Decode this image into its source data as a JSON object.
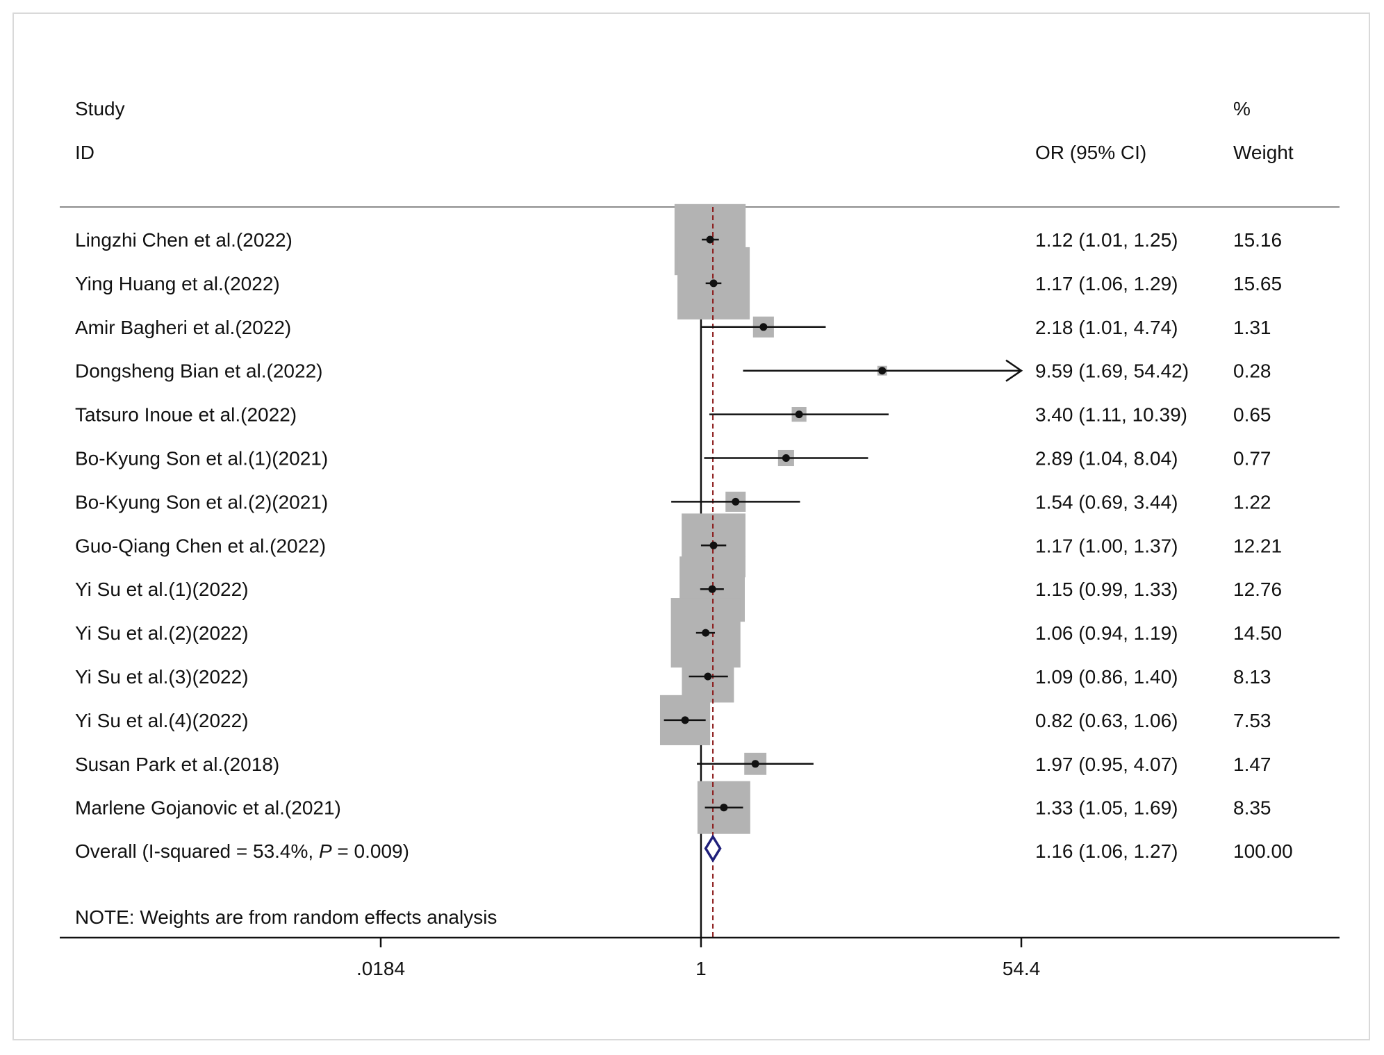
{
  "chart_data": {
    "type": "forest",
    "header": {
      "study_line1": "Study",
      "study_line2": "ID",
      "effect_label": "OR (95% CI)",
      "weight_line1": "%",
      "weight_line2": "Weight"
    },
    "studies": [
      {
        "label": "Lingzhi Chen et al.(2022)",
        "or": 1.12,
        "lo": 1.01,
        "hi": 1.25,
        "ci_text": "1.12 (1.01, 1.25)",
        "weight": 15.16,
        "weight_text": "15.16"
      },
      {
        "label": "Ying Huang et al.(2022)",
        "or": 1.17,
        "lo": 1.06,
        "hi": 1.29,
        "ci_text": "1.17 (1.06, 1.29)",
        "weight": 15.65,
        "weight_text": "15.65"
      },
      {
        "label": "Amir Bagheri et al.(2022)",
        "or": 2.18,
        "lo": 1.01,
        "hi": 4.74,
        "ci_text": "2.18 (1.01, 4.74)",
        "weight": 1.31,
        "weight_text": "1.31"
      },
      {
        "label": "Dongsheng Bian et al.(2022)",
        "or": 9.59,
        "lo": 1.69,
        "hi": 54.42,
        "ci_text": "9.59 (1.69, 54.42)",
        "weight": 0.28,
        "weight_text": "0.28"
      },
      {
        "label": "Tatsuro Inoue et al.(2022)",
        "or": 3.4,
        "lo": 1.11,
        "hi": 10.39,
        "ci_text": "3.40 (1.11, 10.39)",
        "weight": 0.65,
        "weight_text": "0.65"
      },
      {
        "label": "Bo-Kyung Son et al.(1)(2021)",
        "or": 2.89,
        "lo": 1.04,
        "hi": 8.04,
        "ci_text": "2.89 (1.04, 8.04)",
        "weight": 0.77,
        "weight_text": "0.77"
      },
      {
        "label": "Bo-Kyung Son et al.(2)(2021)",
        "or": 1.54,
        "lo": 0.69,
        "hi": 3.44,
        "ci_text": "1.54 (0.69, 3.44)",
        "weight": 1.22,
        "weight_text": "1.22"
      },
      {
        "label": "Guo-Qiang Chen et al.(2022)",
        "or": 1.17,
        "lo": 1.0,
        "hi": 1.37,
        "ci_text": "1.17 (1.00, 1.37)",
        "weight": 12.21,
        "weight_text": "12.21"
      },
      {
        "label": "Yi Su et al.(1)(2022)",
        "or": 1.15,
        "lo": 0.99,
        "hi": 1.33,
        "ci_text": "1.15 (0.99, 1.33)",
        "weight": 12.76,
        "weight_text": "12.76"
      },
      {
        "label": "Yi Su et al.(2)(2022)",
        "or": 1.06,
        "lo": 0.94,
        "hi": 1.19,
        "ci_text": "1.06 (0.94, 1.19)",
        "weight": 14.5,
        "weight_text": "14.50"
      },
      {
        "label": "Yi Su et al.(3)(2022)",
        "or": 1.09,
        "lo": 0.86,
        "hi": 1.4,
        "ci_text": "1.09 (0.86, 1.40)",
        "weight": 8.13,
        "weight_text": "8.13"
      },
      {
        "label": "Yi Su et al.(4)(2022)",
        "or": 0.82,
        "lo": 0.63,
        "hi": 1.06,
        "ci_text": "0.82 (0.63, 1.06)",
        "weight": 7.53,
        "weight_text": "7.53"
      },
      {
        "label": "Susan Park et al.(2018)",
        "or": 1.97,
        "lo": 0.95,
        "hi": 4.07,
        "ci_text": "1.97 (0.95, 4.07)",
        "weight": 1.47,
        "weight_text": "1.47"
      },
      {
        "label": "Marlene Gojanovic et al.(2021)",
        "or": 1.33,
        "lo": 1.05,
        "hi": 1.69,
        "ci_text": "1.33 (1.05, 1.69)",
        "weight": 8.35,
        "weight_text": "8.35"
      }
    ],
    "overall": {
      "label_prefix": "Overall  (I-squared = 53.4%, ",
      "label_p": "P",
      "label_suffix": " = 0.009)",
      "or": 1.16,
      "lo": 1.06,
      "hi": 1.27,
      "ci_text": "1.16 (1.06, 1.27)",
      "weight_text": "100.00"
    },
    "note": "NOTE: Weights are from random effects analysis",
    "x_axis": {
      "scale": "log",
      "range": [
        0.0184,
        54.4
      ],
      "ticks": [
        {
          "value": 0.0184,
          "label": ".0184"
        },
        {
          "value": 1,
          "label": "1"
        },
        {
          "value": 54.4,
          "label": "54.4"
        }
      ],
      "null_line": 1
    },
    "colors": {
      "box": "#b3b3b3",
      "diamond": "#1f1f7a",
      "overall_line": "#8b1a1a",
      "ink": "#111111"
    }
  }
}
